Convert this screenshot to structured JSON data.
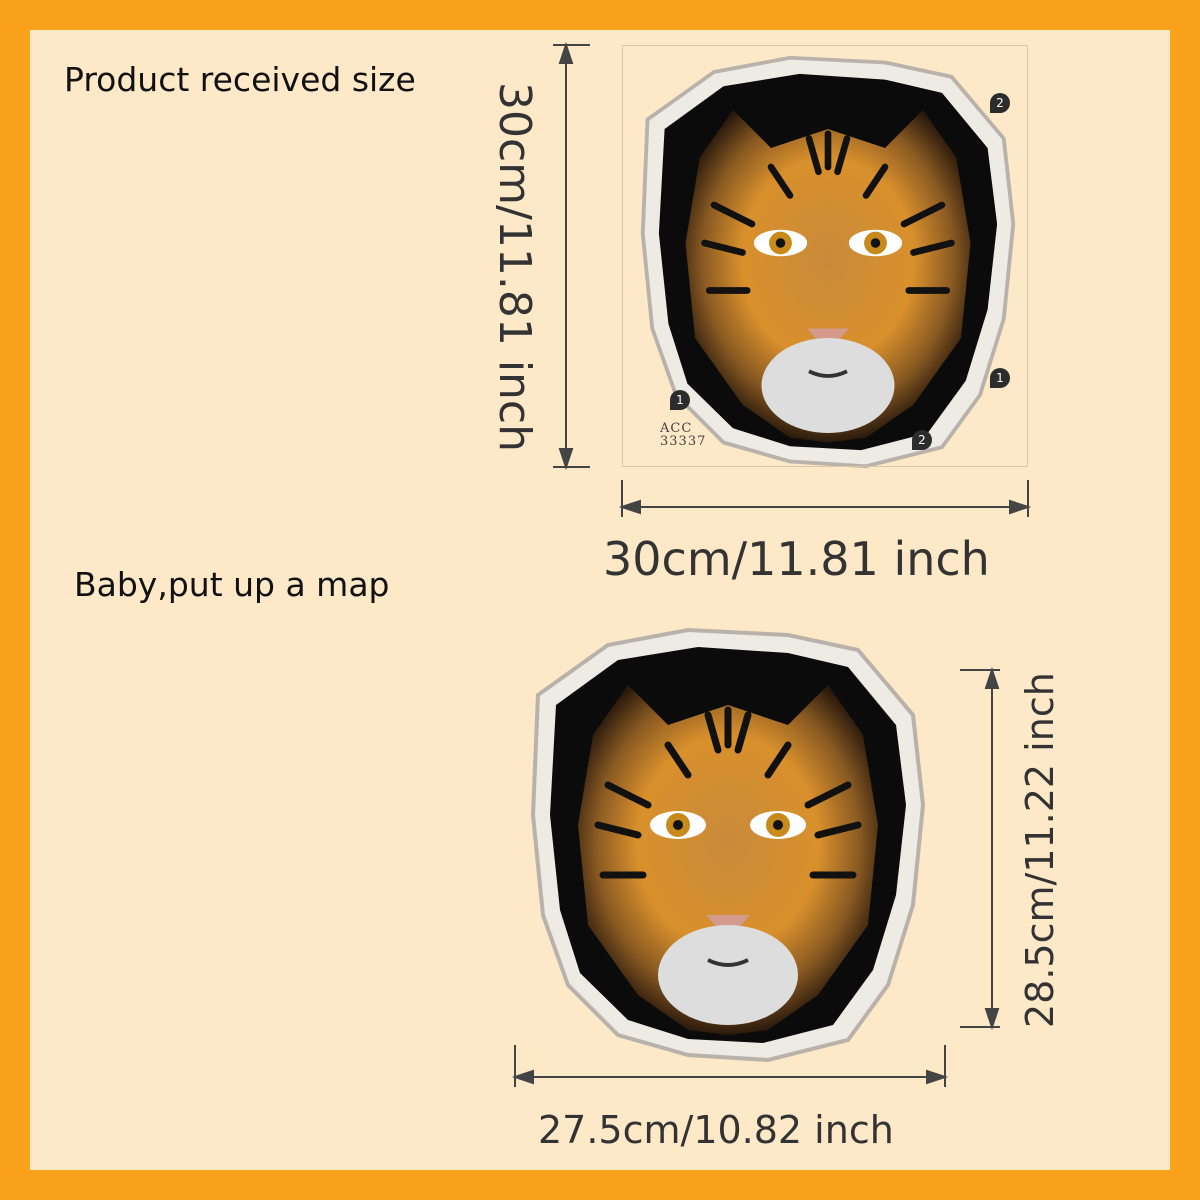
{
  "colors": {
    "border": "#f9a11b",
    "background": "#fde8c8",
    "text": "#333333"
  },
  "labels": {
    "received": "Product received size",
    "applied": "Baby,put up a map"
  },
  "received": {
    "height": "30cm/11.81 inch",
    "width": "30cm/11.81 inch",
    "code_line1": "ACC",
    "code_line2": "33337",
    "markers": [
      "2",
      "1",
      "1",
      "2"
    ]
  },
  "applied": {
    "height": "28.5cm/11.22 inch",
    "width": "27.5cm/10.82 inch"
  }
}
